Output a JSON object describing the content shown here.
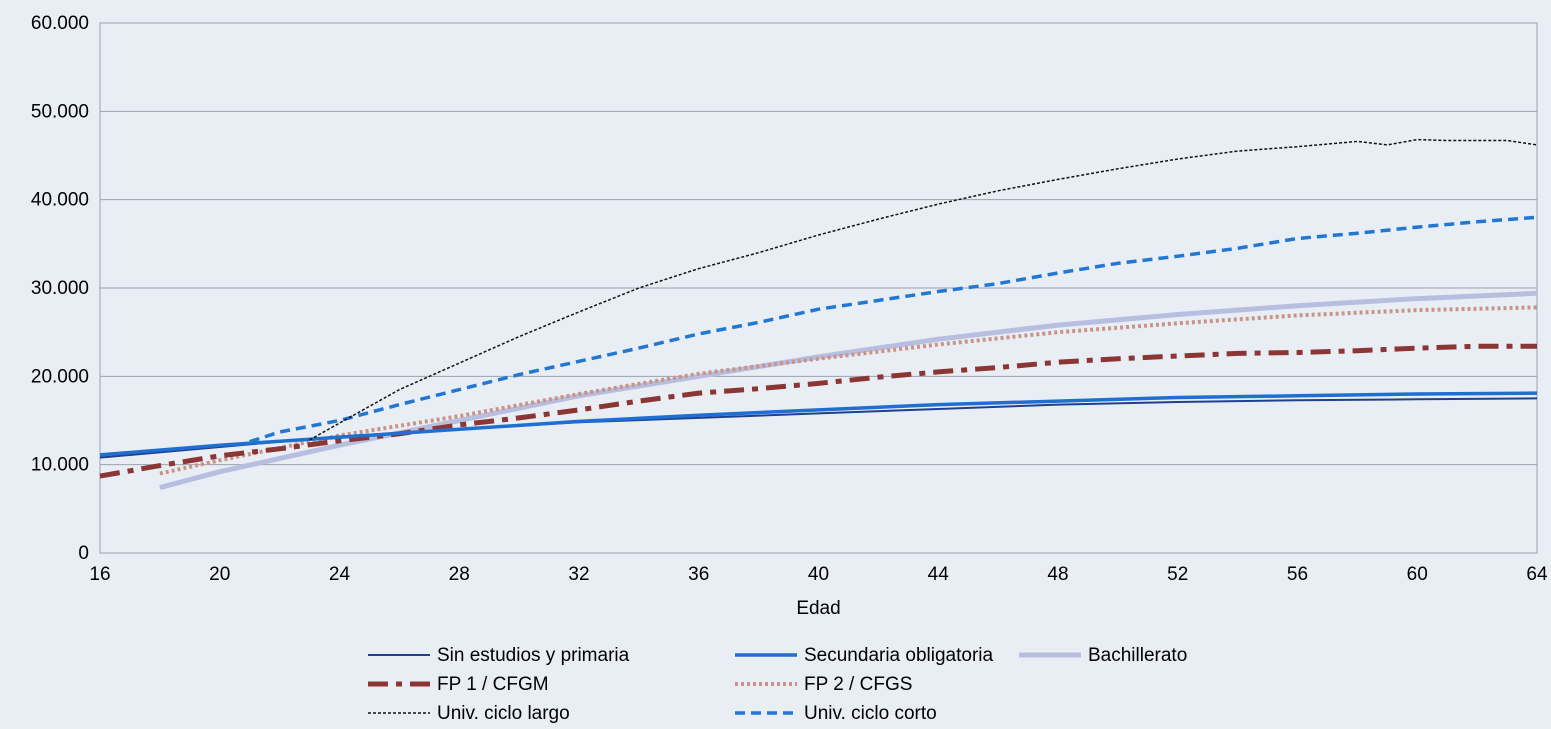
{
  "chart_data": {
    "type": "line",
    "title": "",
    "xlabel": "Edad",
    "ylabel": "",
    "xlim": [
      16,
      64
    ],
    "ylim": [
      0,
      60000
    ],
    "x_ticks": [
      16,
      20,
      24,
      28,
      32,
      36,
      40,
      44,
      48,
      52,
      56,
      60,
      64
    ],
    "y_ticks": [
      0,
      10000,
      20000,
      30000,
      40000,
      50000,
      60000
    ],
    "y_tick_labels": [
      "0",
      "10.000",
      "20.000",
      "30.000",
      "40.000",
      "50.000",
      "60.000"
    ],
    "grid": "horizontal",
    "legend_position": "bottom",
    "background": "#e9eef5",
    "series": [
      {
        "name": "Sin estudios y primaria",
        "color": "#1f3f8f",
        "style": "solid-thin",
        "x": [
          16,
          20,
          24,
          28,
          32,
          36,
          40,
          44,
          48,
          52,
          56,
          60,
          64
        ],
        "y": [
          10800,
          12000,
          13200,
          14000,
          14800,
          15300,
          15800,
          16300,
          16800,
          17100,
          17300,
          17400,
          17500
        ]
      },
      {
        "name": "Secundaria obligatoria",
        "color": "#1f6fd1",
        "style": "solid",
        "x": [
          16,
          20,
          24,
          28,
          32,
          36,
          40,
          44,
          48,
          52,
          56,
          60,
          64
        ],
        "y": [
          11100,
          12200,
          13100,
          14000,
          14900,
          15600,
          16200,
          16800,
          17200,
          17600,
          17800,
          18000,
          18100
        ]
      },
      {
        "name": "Bachillerato",
        "color": "#b7bedf",
        "style": "solid-thick",
        "x": [
          18,
          20,
          24,
          28,
          32,
          36,
          40,
          44,
          48,
          52,
          56,
          60,
          64
        ],
        "y": [
          7400,
          9200,
          12200,
          15000,
          17800,
          20000,
          22200,
          24200,
          25800,
          27000,
          28000,
          28800,
          29400
        ]
      },
      {
        "name": "FP 1 / CFGM",
        "color": "#8b3535",
        "style": "dash-dot",
        "x": [
          16,
          18,
          20,
          22,
          24,
          26,
          28,
          30,
          32,
          34,
          36,
          38,
          40,
          42,
          44,
          46,
          48,
          50,
          52,
          54,
          56,
          58,
          60,
          62,
          64
        ],
        "y": [
          8700,
          9900,
          11000,
          11800,
          12700,
          13500,
          14500,
          15300,
          16200,
          17200,
          18100,
          18600,
          19200,
          19900,
          20500,
          21000,
          21600,
          22000,
          22300,
          22600,
          22700,
          22900,
          23200,
          23400,
          23400
        ]
      },
      {
        "name": "FP 2 / CFGS",
        "color": "#c99487",
        "style": "dotted",
        "x": [
          18,
          20,
          24,
          28,
          32,
          36,
          40,
          44,
          48,
          52,
          56,
          60,
          64
        ],
        "y": [
          9000,
          10500,
          13300,
          15500,
          18000,
          20300,
          22000,
          23600,
          25000,
          26000,
          26900,
          27500,
          27800
        ]
      },
      {
        "name": "Univ. ciclo corto",
        "color": "#2277d2",
        "style": "dashed",
        "x": [
          21,
          22,
          24,
          26,
          28,
          30,
          32,
          34,
          36,
          38,
          40,
          42,
          44,
          46,
          48,
          50,
          52,
          54,
          56,
          58,
          60,
          62,
          64
        ],
        "y": [
          12600,
          13700,
          15000,
          16800,
          18500,
          20200,
          21700,
          23200,
          24800,
          26100,
          27600,
          28600,
          29600,
          30500,
          31700,
          32800,
          33600,
          34500,
          35600,
          36200,
          36900,
          37500,
          38000
        ]
      },
      {
        "name": "Univ. ciclo largo",
        "color": "#111111",
        "style": "dotted-thin",
        "x": [
          23,
          24,
          26,
          28,
          30,
          32,
          34,
          36,
          38,
          40,
          42,
          44,
          46,
          48,
          50,
          52,
          54,
          56,
          58,
          59,
          60,
          61,
          62,
          63,
          64
        ],
        "y": [
          12800,
          14700,
          18500,
          21500,
          24500,
          27300,
          30000,
          32200,
          34000,
          36000,
          37800,
          39500,
          41000,
          42300,
          43500,
          44600,
          45500,
          46000,
          46600,
          46200,
          46800,
          46700,
          46700,
          46700,
          46200
        ]
      }
    ],
    "legend_order": [
      0,
      3,
      6,
      1,
      4,
      5,
      2
    ]
  }
}
